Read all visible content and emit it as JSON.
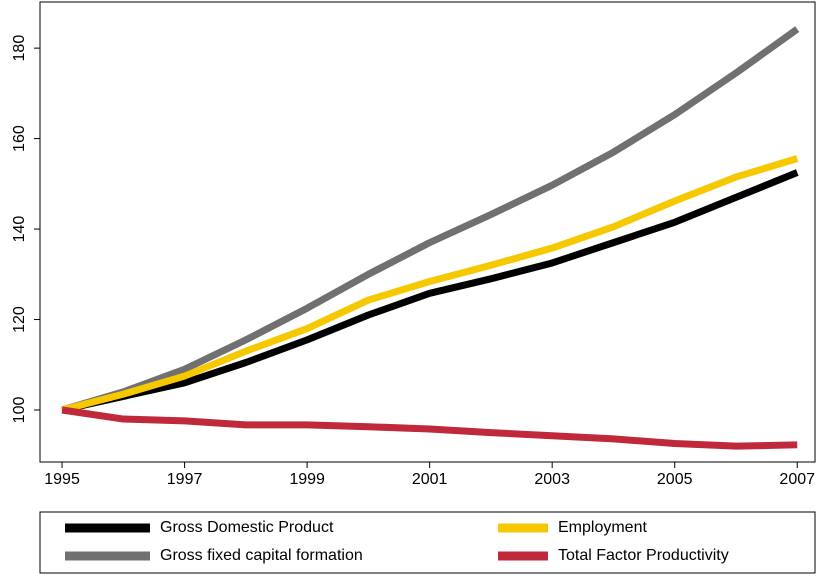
{
  "chart_data": {
    "type": "line",
    "x": [
      1995,
      1996,
      1997,
      1998,
      1999,
      2000,
      2001,
      2002,
      2003,
      2004,
      2005,
      2006,
      2007
    ],
    "series": [
      {
        "name": "Gross Domestic Product",
        "color": "#000000",
        "values": [
          100,
          103,
          106,
          110.5,
          115.5,
          121,
          125.8,
          129,
          132.5,
          137,
          141.5,
          147,
          152.5
        ]
      },
      {
        "name": "Gross fixed capital formation",
        "color": "#707070",
        "values": [
          100,
          104,
          109,
          115.5,
          122.5,
          130,
          137,
          143.2,
          149.7,
          157,
          165.3,
          174.5,
          184.2
        ]
      },
      {
        "name": "Employment",
        "color": "#f5c800",
        "values": [
          100,
          103.5,
          107.5,
          113,
          118,
          124.3,
          128.4,
          132,
          135.8,
          140.5,
          146.2,
          151.5,
          155.6
        ]
      },
      {
        "name": "Total Factor Productivity",
        "color": "#c0283c",
        "values": [
          100,
          98,
          97.6,
          96.7,
          96.7,
          96.3,
          95.8,
          95,
          94.3,
          93.6,
          92.6,
          92,
          92.3
        ]
      }
    ],
    "xlim": [
      1994.64,
      2007.29
    ],
    "xticks": [
      1995,
      1997,
      1999,
      2001,
      2003,
      2005,
      2007
    ],
    "ylim": [
      88.5,
      190.2
    ],
    "yticks": [
      100,
      120,
      140,
      160,
      180
    ],
    "grid": false,
    "legend": "bottom"
  }
}
